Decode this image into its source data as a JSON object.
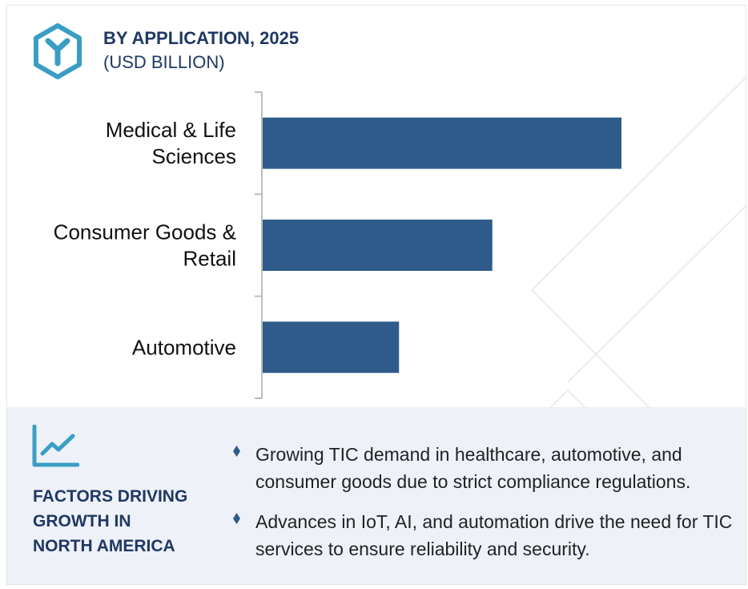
{
  "header": {
    "title": "BY APPLICATION, 2025",
    "subtitle": "(USD BILLION)",
    "logo_icon": "hexagon-y-logo-icon"
  },
  "colors": {
    "bar": "#2e5b8a",
    "title": "#1f3864",
    "logo": "#3a9ec4",
    "panel_bg": "#eef1f8",
    "bullet": "#2e5b8a"
  },
  "chart_data": {
    "type": "bar",
    "orientation": "horizontal",
    "categories": [
      [
        "Medical & Life",
        "Sciences"
      ],
      [
        "Consumer Goods &",
        "Retail"
      ],
      [
        "Automotive"
      ]
    ],
    "values": [
      100,
      64,
      38
    ],
    "xlim": [
      0,
      100
    ],
    "grid": false,
    "legend": "none",
    "x_axis_shown": false
  },
  "factors": {
    "icon": "trend-chart-icon",
    "title": "FACTORS DRIVING\nGROWTH IN\nNORTH AMERICA",
    "bullets": [
      "Growing TIC demand in healthcare, automotive, and consumer goods due to strict compliance regulations.",
      "Advances in IoT, AI, and automation drive the need for TIC services to ensure reliability and security."
    ]
  }
}
